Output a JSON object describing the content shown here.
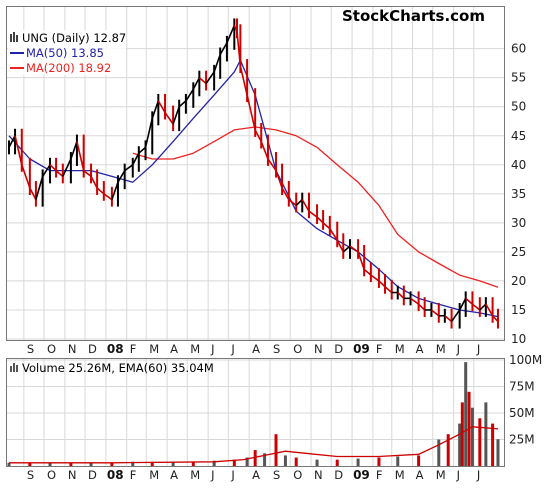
{
  "brand": "StockCharts.com",
  "chart_data": [
    {
      "type": "line",
      "legend_placement": "top-left",
      "legend": {
        "title": "UNG (Daily) 12.87",
        "ma50": "MA(50) 13.85",
        "ma200": "MA(200) 18.92"
      },
      "colors": {
        "price_up": "#000000",
        "price_down": "#cc0000",
        "ma50": "#2222aa",
        "ma200": "#ee2222"
      },
      "ylim": [
        10,
        67
      ],
      "yticks": [
        10,
        15,
        20,
        25,
        30,
        35,
        40,
        45,
        50,
        55,
        60
      ],
      "xticks": [
        "S",
        "O",
        "N",
        "D",
        "08",
        "F",
        "M",
        "A",
        "M",
        "J",
        "J",
        "A",
        "S",
        "O",
        "N",
        "D",
        "09",
        "F",
        "M",
        "A",
        "M",
        "J",
        "J"
      ],
      "year_labels": [
        "08",
        "09"
      ],
      "grid": true,
      "series": [
        {
          "key": "price",
          "x": [
            "2007-08-01",
            "2007-08-10",
            "2007-08-20",
            "2007-09-01",
            "2007-09-10",
            "2007-09-20",
            "2007-10-01",
            "2007-10-10",
            "2007-10-20",
            "2007-11-01",
            "2007-11-10",
            "2007-11-20",
            "2007-12-01",
            "2007-12-10",
            "2007-12-20",
            "2008-01-01",
            "2008-01-10",
            "2008-01-20",
            "2008-02-01",
            "2008-02-10",
            "2008-02-20",
            "2008-03-01",
            "2008-03-10",
            "2008-03-20",
            "2008-04-01",
            "2008-04-10",
            "2008-04-20",
            "2008-05-01",
            "2008-05-10",
            "2008-05-20",
            "2008-06-01",
            "2008-06-10",
            "2008-06-20",
            "2008-07-01",
            "2008-07-05",
            "2008-07-10",
            "2008-07-20",
            "2008-08-01",
            "2008-08-10",
            "2008-08-20",
            "2008-09-01",
            "2008-09-10",
            "2008-09-20",
            "2008-10-01",
            "2008-10-10",
            "2008-10-20",
            "2008-11-01",
            "2008-11-10",
            "2008-11-20",
            "2008-12-01",
            "2008-12-10",
            "2008-12-20",
            "2009-01-01",
            "2009-01-10",
            "2009-01-20",
            "2009-02-01",
            "2009-02-10",
            "2009-02-20",
            "2009-03-01",
            "2009-03-10",
            "2009-03-20",
            "2009-04-01",
            "2009-04-10",
            "2009-04-20",
            "2009-05-01",
            "2009-05-10",
            "2009-05-20",
            "2009-06-01",
            "2009-06-10",
            "2009-06-20",
            "2009-07-01",
            "2009-07-10",
            "2009-07-20",
            "2009-07-28"
          ],
          "values": [
            43,
            45,
            40,
            36,
            34,
            38,
            40,
            39,
            38,
            41,
            44,
            39,
            38,
            36,
            35,
            34,
            37,
            39,
            40,
            42,
            43,
            48,
            51,
            49,
            47,
            50,
            51,
            53,
            55,
            54,
            56,
            59,
            61,
            64,
            63,
            57,
            52,
            46,
            44,
            41,
            39,
            36,
            34,
            33,
            34,
            32,
            31,
            30,
            29,
            27,
            25,
            26,
            25,
            22,
            21,
            20,
            19,
            18,
            18,
            17,
            17,
            16,
            15,
            15,
            14,
            14,
            13,
            15,
            17,
            16,
            15,
            16,
            14,
            13
          ]
        },
        {
          "key": "ma50",
          "x": [
            "2007-08-01",
            "2007-09-01",
            "2007-10-01",
            "2007-11-01",
            "2007-12-01",
            "2008-01-01",
            "2008-02-01",
            "2008-03-01",
            "2008-04-01",
            "2008-05-01",
            "2008-06-01",
            "2008-07-01",
            "2008-07-10",
            "2008-08-01",
            "2008-09-01",
            "2008-10-01",
            "2008-11-01",
            "2008-12-01",
            "2009-01-01",
            "2009-02-01",
            "2009-03-01",
            "2009-04-01",
            "2009-05-01",
            "2009-06-01",
            "2009-07-01",
            "2009-07-28"
          ],
          "values": [
            45,
            41,
            39,
            39,
            39,
            38,
            37,
            40,
            44,
            48,
            52,
            56,
            58,
            52,
            39,
            32,
            29,
            27,
            25,
            22,
            19,
            17,
            16,
            15,
            14.5,
            13.85
          ]
        },
        {
          "key": "ma200",
          "x": [
            "2008-02-01",
            "2008-03-01",
            "2008-04-01",
            "2008-05-01",
            "2008-06-01",
            "2008-07-01",
            "2008-08-01",
            "2008-09-01",
            "2008-10-01",
            "2008-11-01",
            "2008-12-01",
            "2009-01-01",
            "2009-02-01",
            "2009-03-01",
            "2009-04-01",
            "2009-05-01",
            "2009-06-01",
            "2009-07-01",
            "2009-07-28"
          ],
          "values": [
            42,
            41,
            41,
            42,
            44,
            46,
            46.5,
            46,
            45,
            43,
            40,
            37,
            33,
            28,
            25,
            23,
            21,
            20,
            18.92
          ]
        }
      ]
    },
    {
      "type": "bar",
      "legend_placement": "top-left",
      "legend": {
        "title": "Volume 25.26M, EMA(60) 35.04M"
      },
      "ylim": [
        0,
        100
      ],
      "ytick_labels": [
        "100M",
        "75M",
        "50M",
        "25M"
      ],
      "yticks": [
        100,
        75,
        50,
        25
      ],
      "colors": {
        "up": "#555555",
        "down": "#cc0000",
        "ema": "#cc0000"
      },
      "xticks": [
        "S",
        "O",
        "N",
        "D",
        "08",
        "F",
        "M",
        "A",
        "M",
        "J",
        "J",
        "A",
        "S",
        "O",
        "N",
        "D",
        "09",
        "F",
        "M",
        "A",
        "M",
        "J",
        "J"
      ],
      "series": [
        {
          "key": "volume",
          "x": [
            "2007-08-01",
            "2007-09-01",
            "2007-10-01",
            "2007-11-01",
            "2007-12-01",
            "2008-01-01",
            "2008-02-01",
            "2008-03-01",
            "2008-04-01",
            "2008-05-01",
            "2008-06-01",
            "2008-07-01",
            "2008-07-20",
            "2008-08-01",
            "2008-08-15",
            "2008-09-01",
            "2008-09-15",
            "2008-10-01",
            "2008-11-01",
            "2008-12-01",
            "2009-01-01",
            "2009-02-01",
            "2009-03-01",
            "2009-04-01",
            "2009-05-01",
            "2009-05-15",
            "2009-06-01",
            "2009-06-05",
            "2009-06-10",
            "2009-06-15",
            "2009-06-20",
            "2009-07-01",
            "2009-07-10",
            "2009-07-20",
            "2009-07-28"
          ],
          "values": [
            3,
            3,
            3,
            3,
            3,
            3,
            4,
            4,
            4,
            4,
            5,
            6,
            8,
            15,
            12,
            30,
            10,
            8,
            6,
            6,
            7,
            8,
            9,
            10,
            25,
            30,
            40,
            60,
            98,
            70,
            55,
            45,
            60,
            40,
            25.26
          ]
        },
        {
          "key": "ema60",
          "x": [
            "2007-08-01",
            "2008-01-01",
            "2008-06-01",
            "2008-07-15",
            "2008-08-15",
            "2008-09-15",
            "2008-10-15",
            "2008-12-01",
            "2009-02-01",
            "2009-04-01",
            "2009-05-01",
            "2009-06-01",
            "2009-06-20",
            "2009-07-10",
            "2009-07-28"
          ],
          "values": [
            3,
            3,
            4,
            6,
            10,
            14,
            12,
            9,
            9,
            11,
            20,
            30,
            37,
            36,
            35.04
          ]
        }
      ]
    }
  ]
}
